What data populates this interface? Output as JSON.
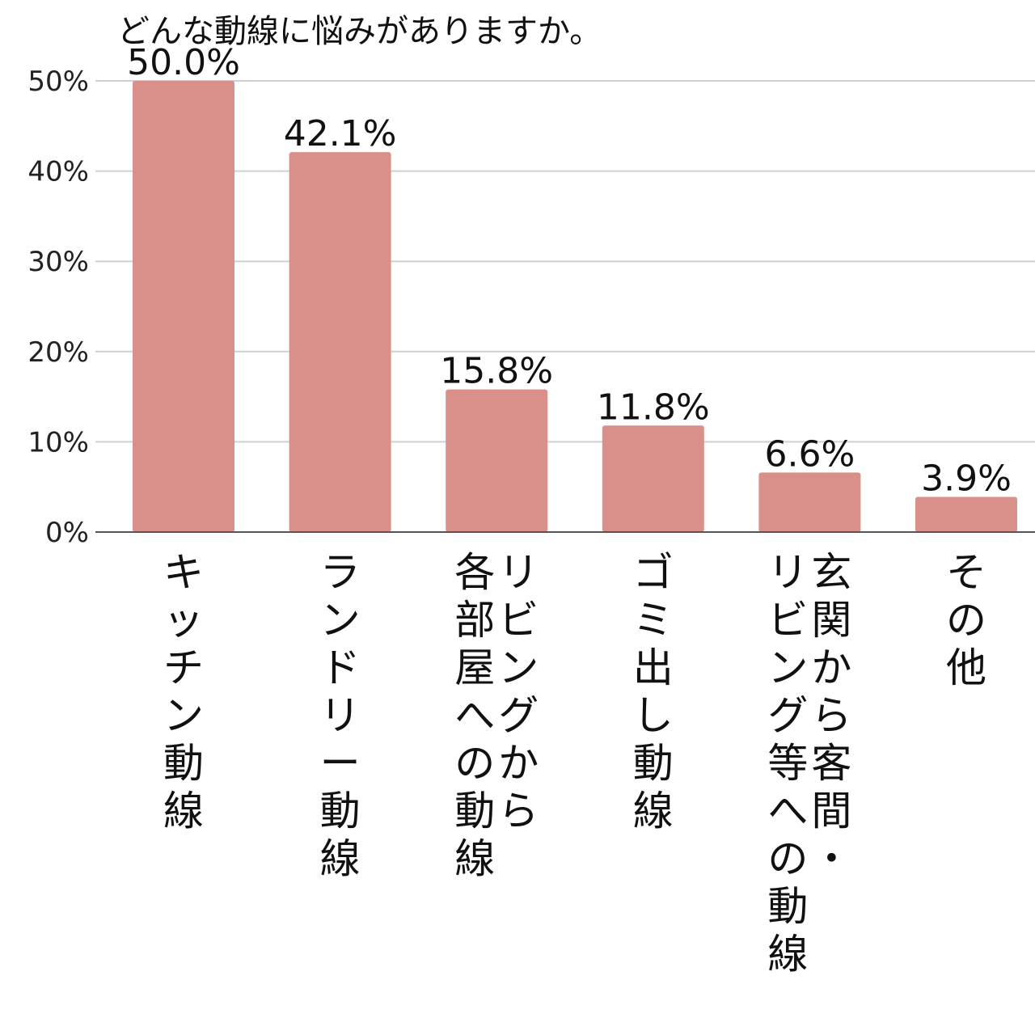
{
  "chart_data": {
    "type": "bar",
    "title": "どんな動線に悩みがありますか。",
    "categories": [
      [
        "キッチン動線"
      ],
      [
        "ランドリー動線"
      ],
      [
        "リビングから",
        "各部屋への動線"
      ],
      [
        "ゴミ出し動線"
      ],
      [
        "玄関から客間・",
        "リビング等への動線"
      ],
      [
        "その他"
      ]
    ],
    "values": [
      50.0,
      42.1,
      15.8,
      11.8,
      6.6,
      3.9
    ],
    "data_labels": [
      "50.0%",
      "42.1%",
      "15.8%",
      "11.8%",
      "6.6%",
      "3.9%"
    ],
    "yticks": [
      0,
      10,
      20,
      30,
      40,
      50
    ],
    "ytick_labels": [
      "0%",
      "10%",
      "20%",
      "30%",
      "40%",
      "50%"
    ],
    "ylim": [
      0,
      50
    ],
    "grid": true,
    "bar_color": "#d9908b",
    "grid_color": "#d0d0d0",
    "axis_color": "#555555"
  }
}
